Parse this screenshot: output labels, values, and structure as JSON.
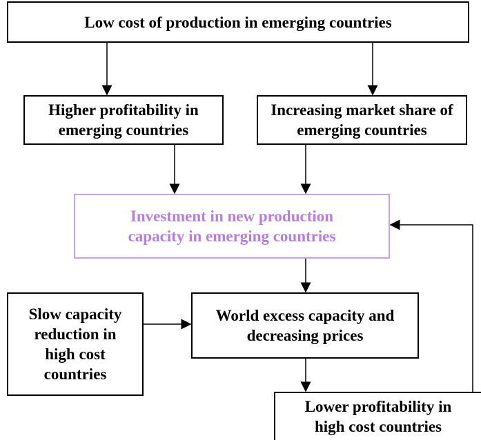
{
  "nodes": [
    {
      "label": "Low cost of production in emerging countries"
    },
    {
      "label": "Higher profitability in emerging countries"
    },
    {
      "label": "Increasing market share of emerging countries"
    },
    {
      "label": "Investment in new production capacity in emerging countries"
    },
    {
      "label": "Slow capacity reduction in high cost countries"
    },
    {
      "label": "World excess capacity and decreasing prices"
    },
    {
      "label": "Lower profitability in high cost countries"
    }
  ]
}
